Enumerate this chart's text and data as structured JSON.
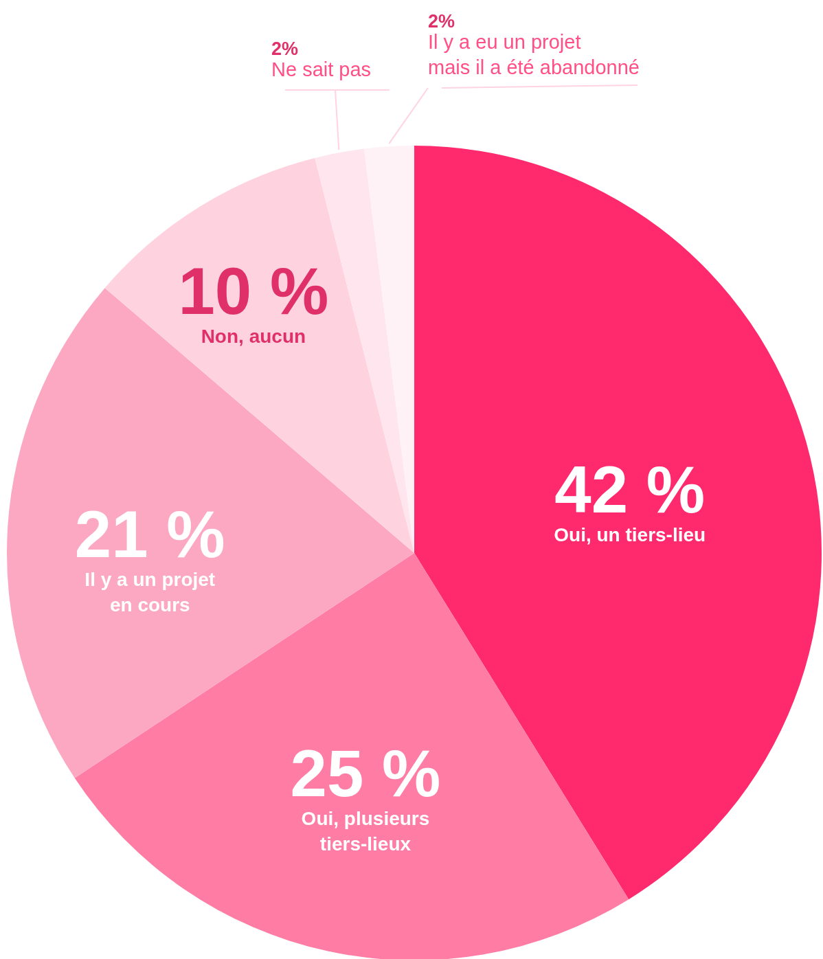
{
  "chart_data": {
    "type": "pie",
    "categories": [
      "Oui, un tiers-lieu",
      "Oui, plusieurs\ntiers-lieux",
      "Il y a un projet\nen cours",
      "Non, aucun",
      "Ne sait pas",
      "Il y a eu un projet\nmais il a été abandonné"
    ],
    "values": [
      42,
      25,
      21,
      10,
      2,
      2
    ],
    "colors": [
      "#ff2a6d",
      "#ff7ca4",
      "#fca8c3",
      "#fed3df",
      "#ffe6ee",
      "#fff2f6"
    ],
    "value_labels": [
      "42 %",
      "25 %",
      "21 %",
      "10 %",
      "2%",
      "2%"
    ]
  }
}
